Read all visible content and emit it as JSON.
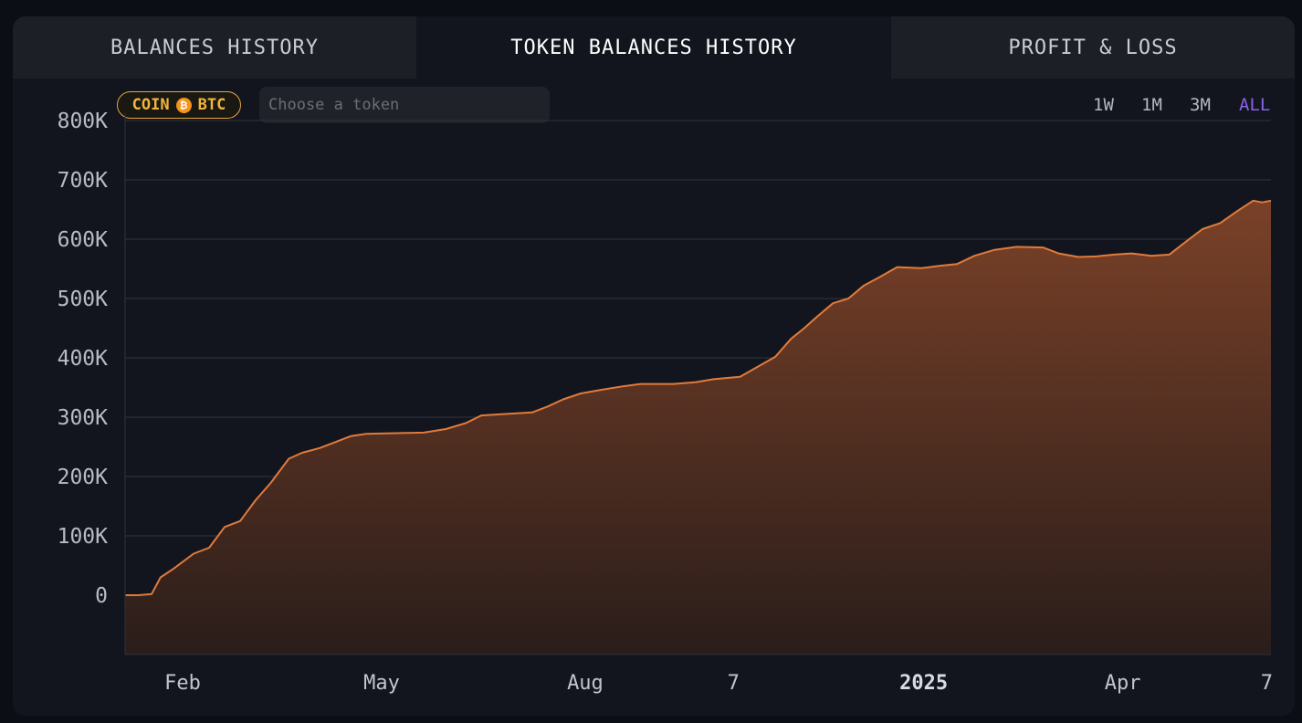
{
  "tabs": [
    {
      "label": "BALANCES HISTORY"
    },
    {
      "label": "TOKEN BALANCES HISTORY"
    },
    {
      "label": "PROFIT & LOSS"
    }
  ],
  "coin_badge": {
    "prefix": "COIN",
    "icon": "bitcoin-icon",
    "symbol": "BTC",
    "glyph": "₿"
  },
  "token_search": {
    "placeholder": "Choose a token",
    "value": ""
  },
  "time_ranges": [
    {
      "label": "1W",
      "selected": false
    },
    {
      "label": "1M",
      "selected": false
    },
    {
      "label": "3M",
      "selected": false
    },
    {
      "label": "ALL",
      "selected": true
    }
  ],
  "colors": {
    "line": "#e07b3c",
    "fill_top": "#7a4128",
    "fill_bottom": "#2a1d1a",
    "accent": "#8a63e8",
    "badge": "#f2b43c"
  },
  "chart_data": {
    "type": "area",
    "ylim": [
      -100000,
      800000
    ],
    "y_ticks": [
      0,
      100000,
      200000,
      300000,
      400000,
      500000,
      600000,
      700000,
      800000
    ],
    "y_tick_labels": [
      "0",
      "100K",
      "200K",
      "300K",
      "400K",
      "500K",
      "600K",
      "700K",
      "800K"
    ],
    "x_range": [
      "2024-01-06",
      "2025-06-07"
    ],
    "x_ticks": [
      {
        "date": "2024-02-01",
        "label": "Feb",
        "bold": false
      },
      {
        "date": "2024-05-01",
        "label": "May",
        "bold": false
      },
      {
        "date": "2024-08-01",
        "label": "Aug",
        "bold": false
      },
      {
        "date": "2024-10-07",
        "label": "7",
        "bold": false
      },
      {
        "date": "2025-01-01",
        "label": "2025",
        "bold": true
      },
      {
        "date": "2025-04-01",
        "label": "Apr",
        "bold": false
      },
      {
        "date": "2025-06-07",
        "label": "7",
        "bold": false
      }
    ],
    "grid": true,
    "series": [
      {
        "points": [
          [
            "2024-01-06",
            0
          ],
          [
            "2024-01-12",
            0
          ],
          [
            "2024-01-18",
            2000
          ],
          [
            "2024-01-22",
            30000
          ],
          [
            "2024-01-28",
            45000
          ],
          [
            "2024-02-06",
            70000
          ],
          [
            "2024-02-13",
            80000
          ],
          [
            "2024-02-20",
            115000
          ],
          [
            "2024-02-27",
            125000
          ],
          [
            "2024-03-05",
            160000
          ],
          [
            "2024-03-12",
            190000
          ],
          [
            "2024-03-20",
            230000
          ],
          [
            "2024-03-26",
            240000
          ],
          [
            "2024-04-03",
            248000
          ],
          [
            "2024-04-10",
            258000
          ],
          [
            "2024-04-17",
            268000
          ],
          [
            "2024-04-24",
            272000
          ],
          [
            "2024-05-05",
            273000
          ],
          [
            "2024-05-20",
            274000
          ],
          [
            "2024-05-30",
            280000
          ],
          [
            "2024-06-08",
            290000
          ],
          [
            "2024-06-15",
            303000
          ],
          [
            "2024-06-24",
            305000
          ],
          [
            "2024-07-08",
            308000
          ],
          [
            "2024-07-15",
            318000
          ],
          [
            "2024-07-22",
            330000
          ],
          [
            "2024-07-30",
            340000
          ],
          [
            "2024-08-08",
            346000
          ],
          [
            "2024-08-18",
            352000
          ],
          [
            "2024-08-26",
            356000
          ],
          [
            "2024-09-10",
            356000
          ],
          [
            "2024-09-20",
            359000
          ],
          [
            "2024-09-28",
            364000
          ],
          [
            "2024-10-10",
            368000
          ],
          [
            "2024-10-18",
            385000
          ],
          [
            "2024-10-26",
            402000
          ],
          [
            "2024-11-02",
            432000
          ],
          [
            "2024-11-08",
            450000
          ],
          [
            "2024-11-14",
            470000
          ],
          [
            "2024-11-21",
            492000
          ],
          [
            "2024-11-28",
            500000
          ],
          [
            "2024-12-05",
            522000
          ],
          [
            "2024-12-12",
            536000
          ],
          [
            "2024-12-20",
            553000
          ],
          [
            "2024-12-31",
            551000
          ],
          [
            "2025-01-08",
            555000
          ],
          [
            "2025-01-16",
            558000
          ],
          [
            "2025-01-24",
            572000
          ],
          [
            "2025-02-02",
            582000
          ],
          [
            "2025-02-12",
            587000
          ],
          [
            "2025-02-24",
            586000
          ],
          [
            "2025-03-03",
            576000
          ],
          [
            "2025-03-12",
            570000
          ],
          [
            "2025-03-20",
            571000
          ],
          [
            "2025-03-28",
            574000
          ],
          [
            "2025-04-05",
            576000
          ],
          [
            "2025-04-14",
            572000
          ],
          [
            "2025-04-22",
            574000
          ],
          [
            "2025-04-30",
            597000
          ],
          [
            "2025-05-07",
            617000
          ],
          [
            "2025-05-15",
            627000
          ],
          [
            "2025-05-23",
            648000
          ],
          [
            "2025-05-30",
            665000
          ],
          [
            "2025-06-03",
            662000
          ],
          [
            "2025-06-07",
            665000
          ]
        ]
      }
    ]
  }
}
